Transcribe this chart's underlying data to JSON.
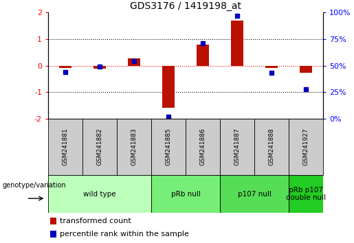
{
  "title": "GDS3176 / 1419198_at",
  "samples": [
    "GSM241881",
    "GSM241882",
    "GSM241883",
    "GSM241885",
    "GSM241886",
    "GSM241887",
    "GSM241888",
    "GSM241927"
  ],
  "transformed_count": [
    -0.08,
    -0.12,
    0.28,
    -1.58,
    0.78,
    1.68,
    -0.08,
    -0.28
  ],
  "percentile_rank": [
    44,
    49,
    54,
    2,
    71,
    97,
    43,
    28
  ],
  "ylim_left": [
    -2,
    2
  ],
  "ylim_right": [
    0,
    100
  ],
  "groups": [
    {
      "label": "wild type",
      "indices": [
        0,
        1,
        2
      ],
      "color": "#bbffbb"
    },
    {
      "label": "pRb null",
      "indices": [
        3,
        4
      ],
      "color": "#77ee77"
    },
    {
      "label": "p107 null",
      "indices": [
        5,
        6
      ],
      "color": "#55dd55"
    },
    {
      "label": "pRb p107\ndouble null",
      "indices": [
        7
      ],
      "color": "#22cc22"
    }
  ],
  "bar_color": "#bb1100",
  "dot_color": "#0000bb",
  "legend_items": [
    "transformed count",
    "percentile rank within the sample"
  ],
  "genotype_label": "genotype/variation",
  "sample_box_color": "#cccccc",
  "sep_color": "#111111"
}
